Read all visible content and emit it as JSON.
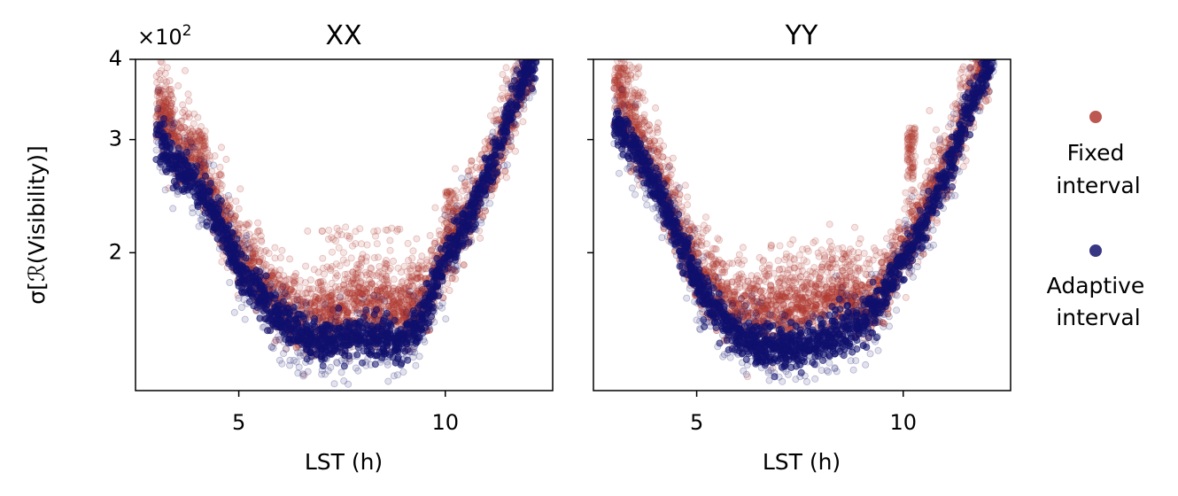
{
  "chart_data": [
    {
      "type": "scatter",
      "panel": "left",
      "title": "XX",
      "xlabel": "LST (h)",
      "ylabel": "σ[ℛ(Visibility)]",
      "y_multiplier": "×10",
      "y_multiplier_exp": "2",
      "xlim": [
        2.5,
        12.6
      ],
      "ylim": [
        1.22,
        4.0
      ],
      "yscale": "log",
      "xticks": [
        5,
        10
      ],
      "xtick_labels": [
        "5",
        "10"
      ],
      "yticks": [
        2,
        3,
        4
      ],
      "ytick_labels": [
        "2",
        "3",
        "4"
      ],
      "series_curves": [
        {
          "name": "Fixed interval",
          "x": [
            3.0,
            3.5,
            4.0,
            4.5,
            5.0,
            5.5,
            6.0,
            6.5,
            7.0,
            7.5,
            8.0,
            8.5,
            9.0,
            9.5,
            10.0,
            10.5,
            11.0,
            11.5,
            12.0
          ],
          "y": [
            3.35,
            2.9,
            2.7,
            2.3,
            1.95,
            1.8,
            1.65,
            1.55,
            1.55,
            1.6,
            1.65,
            1.62,
            1.6,
            1.7,
            1.95,
            2.2,
            2.55,
            3.1,
            3.8
          ],
          "spread": 0.12,
          "outlier_regions": [
            {
              "x": [
                3.0,
                3.4
              ],
              "y": [
                3.0,
                3.6
              ]
            },
            {
              "x": [
                3.7,
                4.2
              ],
              "y": [
                2.6,
                3.1
              ]
            },
            {
              "x": [
                7.0,
                9.2
              ],
              "y": [
                1.6,
                2.2
              ]
            },
            {
              "x": [
                10.0,
                10.3
              ],
              "y": [
                2.0,
                2.5
              ]
            }
          ]
        },
        {
          "name": "Adaptive interval",
          "x": [
            3.0,
            3.5,
            4.0,
            4.5,
            5.0,
            5.5,
            6.0,
            6.5,
            7.0,
            7.5,
            8.0,
            8.5,
            9.0,
            9.5,
            10.0,
            10.5,
            11.0,
            11.5,
            12.0,
            12.2
          ],
          "y": [
            3.05,
            2.75,
            2.55,
            2.25,
            1.9,
            1.72,
            1.58,
            1.48,
            1.45,
            1.47,
            1.48,
            1.46,
            1.45,
            1.6,
            1.95,
            2.2,
            2.6,
            3.2,
            3.85,
            4.0
          ],
          "spread": 0.05
        }
      ]
    },
    {
      "type": "scatter",
      "panel": "right",
      "title": "YY",
      "xlabel": "LST (h)",
      "xlim": [
        2.5,
        12.6
      ],
      "ylim": [
        1.22,
        4.0
      ],
      "yscale": "log",
      "xticks": [
        5,
        10
      ],
      "xtick_labels": [
        "5",
        "10"
      ],
      "yticks": [
        2,
        3,
        4
      ],
      "series_curves": [
        {
          "name": "Fixed interval",
          "x": [
            3.0,
            3.5,
            4.0,
            4.5,
            5.0,
            5.5,
            6.0,
            6.5,
            7.0,
            7.5,
            8.0,
            8.5,
            9.0,
            9.5,
            10.0,
            10.5,
            11.0,
            11.5,
            12.0
          ],
          "y": [
            3.6,
            3.0,
            2.7,
            2.2,
            1.85,
            1.7,
            1.62,
            1.58,
            1.6,
            1.62,
            1.65,
            1.7,
            1.65,
            1.7,
            2.0,
            2.25,
            2.65,
            3.2,
            3.9
          ],
          "spread": 0.12,
          "outlier_regions": [
            {
              "x": [
                3.0,
                3.6
              ],
              "y": [
                3.2,
                3.9
              ]
            },
            {
              "x": [
                6.5,
                9.0
              ],
              "y": [
                1.6,
                2.1
              ]
            },
            {
              "x": [
                10.1,
                10.3
              ],
              "y": [
                2.6,
                3.15
              ]
            }
          ]
        },
        {
          "name": "Adaptive interval",
          "x": [
            3.0,
            3.5,
            4.0,
            4.5,
            5.0,
            5.5,
            6.0,
            6.5,
            7.0,
            7.5,
            8.0,
            8.5,
            9.0,
            9.5,
            10.0,
            10.5,
            11.0,
            11.5,
            12.0,
            12.2
          ],
          "y": [
            3.2,
            2.9,
            2.55,
            2.15,
            1.8,
            1.6,
            1.48,
            1.44,
            1.42,
            1.42,
            1.45,
            1.5,
            1.55,
            1.7,
            1.95,
            2.2,
            2.6,
            3.2,
            3.85,
            4.0
          ],
          "spread": 0.05
        }
      ]
    }
  ],
  "legend": {
    "entries": [
      {
        "label_line1": "Fixed",
        "label_line2": "interval",
        "color": "#b03a32"
      },
      {
        "label_line1": "Adaptive",
        "label_line2": "interval",
        "color": "#14146e"
      }
    ]
  },
  "colors": {
    "fixed": "#b03a32",
    "adaptive": "#10106e",
    "axis": "#000000"
  }
}
